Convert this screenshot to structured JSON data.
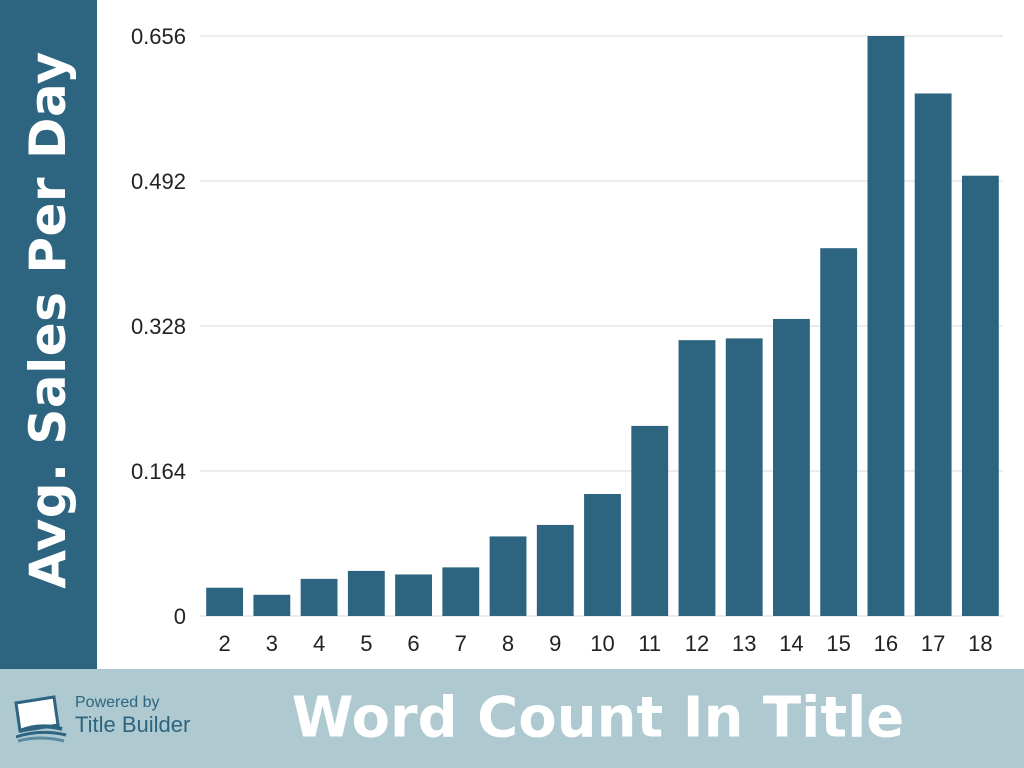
{
  "chart_data": {
    "type": "bar",
    "title": "",
    "xlabel": "Word Count In Title",
    "ylabel": "Avg. Sales Per Day",
    "categories": [
      "2",
      "3",
      "4",
      "5",
      "6",
      "7",
      "8",
      "9",
      "10",
      "11",
      "12",
      "13",
      "14",
      "15",
      "16",
      "17",
      "18"
    ],
    "values": [
      0.032,
      0.024,
      0.042,
      0.051,
      0.047,
      0.055,
      0.09,
      0.103,
      0.138,
      0.215,
      0.312,
      0.314,
      0.336,
      0.416,
      0.656,
      0.591,
      0.498
    ],
    "yticks": [
      0,
      0.164,
      0.328,
      0.492,
      0.656
    ],
    "ytick_labels": [
      "0",
      "0.164",
      "0.328",
      "0.492",
      "0.656"
    ],
    "ylim": [
      0,
      0.656
    ],
    "grid": true,
    "colors": {
      "bar": "#2d6580",
      "panel": "#2d6580",
      "footer": "#aec9d0",
      "grid": "#d9d9d9"
    }
  },
  "branding": {
    "powered_by": "Powered by",
    "name": "Title Builder"
  }
}
